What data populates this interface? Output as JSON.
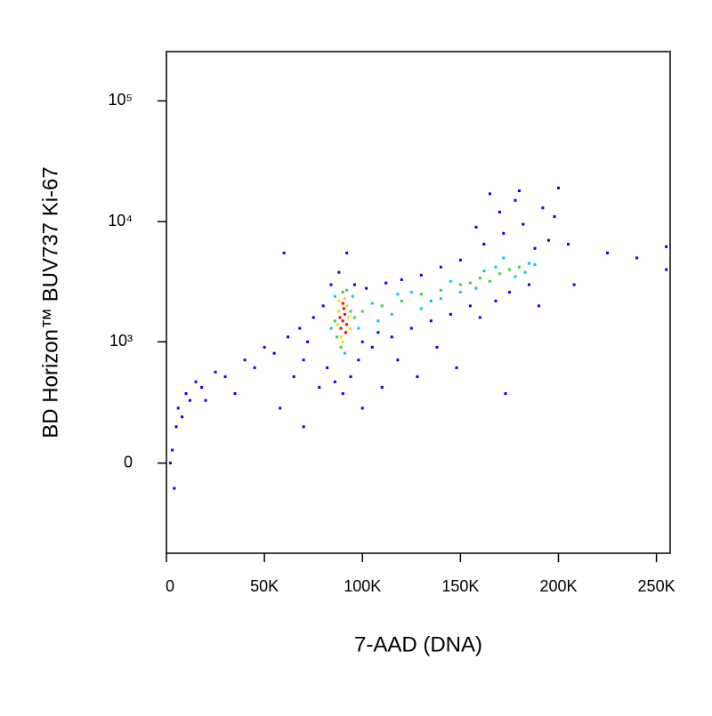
{
  "chart_data": {
    "type": "scatter",
    "xlabel": "7-AAD (DNA)",
    "ylabel": "BD Horizon™ BUV737 Ki-67",
    "xlim": [
      0,
      257000
    ],
    "xticks": [
      0,
      {
        "value": 50000,
        "label": "50K"
      },
      {
        "value": 100000,
        "label": "100K"
      },
      {
        "value": 150000,
        "label": "150K"
      },
      {
        "value": 200000,
        "label": "200K"
      },
      {
        "value": 250000,
        "label": "250K"
      }
    ],
    "ylim": [
      -540,
      256000
    ],
    "y_scale": "asinh",
    "y_cofactor": 200,
    "yticks": [
      0,
      {
        "value": 1000,
        "label": "10³"
      },
      {
        "value": 10000,
        "label": "10⁴"
      },
      {
        "value": 100000,
        "label": "10⁵"
      }
    ],
    "series": [
      {
        "color": "#0000ff",
        "x": [
          3000,
          5000,
          4000,
          2000,
          6000,
          8000,
          10000,
          12000,
          15000,
          18000,
          20000,
          25000,
          30000,
          35000,
          40000,
          45000,
          50000,
          55000,
          60000,
          62000,
          65000,
          68000,
          70000,
          72000,
          75000,
          78000,
          80000,
          82000,
          84000,
          86000,
          88000,
          90000,
          92000,
          94000,
          96000,
          98000,
          100000,
          102000,
          105000,
          108000,
          112000,
          115000,
          118000,
          120000,
          125000,
          128000,
          130000,
          135000,
          138000,
          140000,
          145000,
          148000,
          150000,
          155000,
          158000,
          160000,
          162000,
          165000,
          168000,
          170000,
          172000,
          175000,
          178000,
          180000,
          182000,
          185000,
          188000,
          190000,
          192000,
          195000,
          198000,
          200000,
          205000,
          208000,
          225000,
          240000,
          255000,
          255000,
          110000,
          100000,
          173000,
          58000,
          70000
        ],
        "y": [
          50,
          150,
          -100,
          0,
          250,
          200,
          350,
          300,
          450,
          400,
          300,
          550,
          500,
          350,
          700,
          600,
          900,
          800,
          5500,
          1100,
          500,
          1300,
          700,
          1000,
          1600,
          400,
          2000,
          600,
          3000,
          450,
          3800,
          350,
          5500,
          500,
          3000,
          700,
          1000,
          2800,
          900,
          1200,
          3100,
          1100,
          700,
          3300,
          1300,
          500,
          3600,
          1500,
          900,
          4200,
          1700,
          600,
          4800,
          2000,
          9000,
          1600,
          6500,
          17000,
          2200,
          12000,
          8000,
          2600,
          15000,
          18000,
          9500,
          3000,
          6000,
          2000,
          13000,
          7000,
          11000,
          19000,
          6500,
          3000,
          5500,
          5000,
          6200,
          4000,
          400,
          250,
          350,
          250,
          150
        ]
      },
      {
        "color": "#00c8f0",
        "x": [
          84000,
          95000,
          91000,
          86000,
          98000,
          105000,
          115000,
          125000,
          135000,
          145000,
          158000,
          168000,
          178000,
          185000,
          172000,
          162000,
          150000,
          140000,
          108000,
          118000,
          130000,
          183000,
          188000
        ],
        "y": [
          1300,
          2400,
          800,
          2400,
          1300,
          2100,
          1700,
          2600,
          2200,
          3200,
          2800,
          4200,
          3500,
          4500,
          5000,
          3900,
          2600,
          2300,
          1500,
          2500,
          1900,
          3800,
          4400
        ]
      },
      {
        "color": "#3cd23c",
        "x": [
          86000,
          94000,
          90000,
          89000,
          96000,
          92000,
          87000,
          100000,
          110000,
          120000,
          130000,
          140000,
          150000,
          160000,
          170000,
          175000,
          180000,
          165000,
          155000
        ],
        "y": [
          1500,
          1800,
          2600,
          900,
          1600,
          2700,
          1100,
          1800,
          2000,
          2200,
          2500,
          2700,
          3000,
          3400,
          3700,
          4000,
          4200,
          3200,
          3100
        ]
      },
      {
        "color": "#e6e600",
        "x": [
          88000,
          93000,
          89000,
          92000,
          87500,
          91000,
          93500,
          90000,
          88000
        ],
        "y": [
          1800,
          1600,
          1100,
          2000,
          1400,
          2300,
          1300,
          1000,
          2200
        ]
      },
      {
        "color": "#ff0000",
        "x": [
          90000,
          91000,
          89000,
          92000,
          90500,
          88500,
          91500,
          90000
        ],
        "y": [
          1500,
          1700,
          1300,
          1400,
          1900,
          1600,
          1200,
          2100
        ]
      }
    ]
  }
}
